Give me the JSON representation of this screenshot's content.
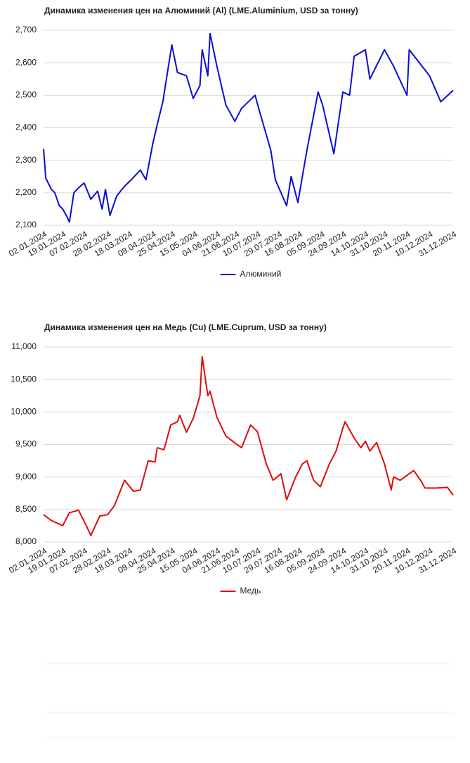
{
  "chart_data": [
    {
      "type": "line",
      "title": "Динамика изменения цен на Алюминий (Al) (LME.Aluminium, USD за тонну)",
      "x": [
        "02.01.2024",
        "04.01.2024",
        "09.01.2024",
        "12.01.2024",
        "16.01.2024",
        "19.01.2024",
        "23.01.2024",
        "25.01.2024",
        "29.01.2024",
        "02.02.2024",
        "07.02.2024",
        "13.02.2024",
        "19.02.2024",
        "23.02.2024",
        "26.02.2024",
        "01.03.2024",
        "07.03.2024",
        "14.03.2024",
        "20.03.2024",
        "28.03.2024",
        "02.04.2024",
        "08.04.2024",
        "12.04.2024",
        "17.04.2024",
        "22.04.2024",
        "25.04.2024",
        "30.04.2024",
        "08.05.2024",
        "14.05.2024",
        "20.05.2024",
        "22.05.2024",
        "27.05.2024",
        "29.05.2024",
        "04.06.2024",
        "12.06.2024",
        "20.06.2024",
        "26.06.2024",
        "08.07.2024",
        "12.07.2024",
        "22.07.2024",
        "26.07.2024",
        "05.08.2024",
        "09.08.2024",
        "15.08.2024",
        "23.08.2024",
        "02.09.2024",
        "06.09.2024",
        "16.09.2024",
        "24.09.2024",
        "30.09.2024",
        "04.10.2024",
        "14.10.2024",
        "18.10.2024",
        "31.10.2024",
        "08.11.2024",
        "20.11.2024",
        "22.11.2024",
        "10.12.2024",
        "20.12.2024",
        "31.12.2024"
      ],
      "series": [
        {
          "name": "Алюминий",
          "color": "#0b0bd9",
          "values": [
            2335,
            2245,
            2210,
            2200,
            2160,
            2150,
            2125,
            2110,
            2200,
            2215,
            2230,
            2180,
            2205,
            2150,
            2210,
            2130,
            2190,
            2220,
            2240,
            2270,
            2240,
            2350,
            2410,
            2480,
            2590,
            2655,
            2570,
            2560,
            2490,
            2530,
            2640,
            2560,
            2690,
            2590,
            2470,
            2420,
            2460,
            2500,
            2450,
            2330,
            2240,
            2160,
            2250,
            2170,
            2330,
            2510,
            2470,
            2320,
            2510,
            2500,
            2620,
            2640,
            2550,
            2640,
            2590,
            2500,
            2640,
            2560,
            2480,
            2515
          ]
        }
      ],
      "xlim": [
        "02.01.2024",
        "31.12.2024"
      ],
      "xticks": [
        "02.01.2024",
        "19.01.2024",
        "07.02.2024",
        "28.02.2024",
        "18.03.2024",
        "08.04.2024",
        "25.04.2024",
        "15.05.2024",
        "04.06.2024",
        "21.06.2024",
        "10.07.2024",
        "29.07.2024",
        "16.08.2024",
        "05.09.2024",
        "24.09.2024",
        "14.10.2024",
        "31.10.2024",
        "20.11.2024",
        "10.12.2024",
        "31.12.2024"
      ],
      "ylim": [
        2100,
        2700
      ],
      "yticks": [
        {
          "value": 2100,
          "label": "2,100"
        },
        {
          "value": 2200,
          "label": "2,200"
        },
        {
          "value": 2300,
          "label": "2,300"
        },
        {
          "value": 2400,
          "label": "2,400"
        },
        {
          "value": 2500,
          "label": "2,500"
        },
        {
          "value": 2600,
          "label": "2,600"
        },
        {
          "value": 2700,
          "label": "2,700"
        }
      ],
      "grid": true,
      "legend": "bottom"
    },
    {
      "type": "line",
      "title": "Динамика изменения цен на Медь (Cu) (LME.Cuprum, USD за тонну)",
      "x": [
        "02.01.2024",
        "09.01.2024",
        "19.01.2024",
        "25.01.2024",
        "02.02.2024",
        "09.02.2024",
        "13.02.2024",
        "21.02.2024",
        "28.02.2024",
        "05.03.2024",
        "14.03.2024",
        "22.03.2024",
        "28.03.2024",
        "04.04.2024",
        "10.04.2024",
        "12.04.2024",
        "18.04.2024",
        "24.04.2024",
        "30.04.2024",
        "02.05.2024",
        "08.05.2024",
        "14.05.2024",
        "20.05.2024",
        "22.05.2024",
        "27.05.2024",
        "29.05.2024",
        "04.06.2024",
        "12.06.2024",
        "18.06.2024",
        "26.06.2024",
        "04.07.2024",
        "10.07.2024",
        "18.07.2024",
        "24.07.2024",
        "31.07.2024",
        "05.08.2024",
        "13.08.2024",
        "19.08.2024",
        "23.08.2024",
        "29.08.2024",
        "04.09.2024",
        "12.09.2024",
        "18.09.2024",
        "24.09.2024",
        "26.09.2024",
        "04.10.2024",
        "10.10.2024",
        "14.10.2024",
        "18.10.2024",
        "24.10.2024",
        "31.10.2024",
        "06.11.2024",
        "08.11.2024",
        "14.11.2024",
        "26.11.2024",
        "02.12.2024",
        "06.12.2024",
        "16.12.2024",
        "26.12.2024",
        "31.12.2024"
      ],
      "series": [
        {
          "name": "Медь",
          "color": "#e00b0b",
          "values": [
            8420,
            8330,
            8250,
            8450,
            8490,
            8250,
            8100,
            8400,
            8420,
            8560,
            8950,
            8780,
            8800,
            9250,
            9230,
            9450,
            9420,
            9800,
            9850,
            9950,
            9690,
            9900,
            10250,
            10850,
            10250,
            10320,
            9920,
            9630,
            9550,
            9450,
            9800,
            9700,
            9200,
            8950,
            9050,
            8650,
            9000,
            9200,
            9250,
            8950,
            8850,
            9200,
            9400,
            9750,
            9850,
            9600,
            9450,
            9550,
            9400,
            9530,
            9200,
            8800,
            9000,
            8950,
            9100,
            8950,
            8830,
            8830,
            8840,
            8720
          ]
        }
      ],
      "xlim": [
        "02.01.2024",
        "31.12.2024"
      ],
      "xticks": [
        "02.01.2024",
        "19.01.2024",
        "07.02.2024",
        "28.02.2024",
        "18.03.2024",
        "08.04.2024",
        "25.04.2024",
        "15.05.2024",
        "04.06.2024",
        "21.06.2024",
        "10.07.2024",
        "29.07.2024",
        "16.08.2024",
        "05.09.2024",
        "24.09.2024",
        "14.10.2024",
        "31.10.2024",
        "20.11.2024",
        "10.12.2024",
        "31.12.2024"
      ],
      "ylim": [
        8000,
        11000
      ],
      "yticks": [
        {
          "value": 8000,
          "label": "8,000"
        },
        {
          "value": 8500,
          "label": "8,500"
        },
        {
          "value": 9000,
          "label": "9,000"
        },
        {
          "value": 9500,
          "label": "9,500"
        },
        {
          "value": 10000,
          "label": "10,000"
        },
        {
          "value": 10500,
          "label": "10,500"
        },
        {
          "value": 11000,
          "label": "11,000"
        }
      ],
      "grid": true,
      "legend": "bottom"
    }
  ]
}
